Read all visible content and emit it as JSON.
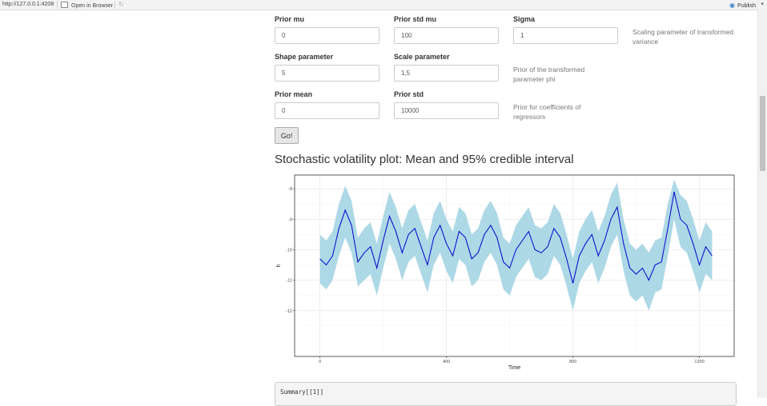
{
  "browser": {
    "url": "http://127.0.0.1:4208",
    "open_in_browser": "Open in Browser",
    "publish": "Publish",
    "caret": "▾"
  },
  "form": {
    "prior_mu": {
      "label": "Prior mu",
      "value": "0"
    },
    "prior_std_mu": {
      "label": "Prior std mu",
      "value": "100"
    },
    "sigma": {
      "label": "Sigma",
      "value": "1"
    },
    "sigma_help": "Scaling parameter of transformed variance",
    "shape": {
      "label": "Shape parameter",
      "value": "5"
    },
    "scale": {
      "label": "Scale parameter",
      "value": "1,5"
    },
    "phi_help": "Prior of the transformed parameter phi",
    "prior_mean": {
      "label": "Prior mean",
      "value": "0"
    },
    "prior_std": {
      "label": "Prior std",
      "value": "10000"
    },
    "coef_help": "Prior for coefficients of regressors",
    "go_label": "Go!"
  },
  "plot_title": "Stochastic volatility plot: Mean and 95% credible interval",
  "code_text": "Summary[[1]]",
  "colors": {
    "band": "#add8e6",
    "line": "#0000cd",
    "grid": "#ebebeb",
    "panel_border": "#333333"
  },
  "chart_data": {
    "type": "area",
    "xlabel": "Time",
    "ylabel": "h",
    "xlim": [
      -80,
      1310
    ],
    "ylim": [
      -13.5,
      -7.55
    ],
    "x_ticks": [
      0,
      400,
      800,
      1200
    ],
    "y_ticks": [
      -8,
      -9,
      -10,
      -11,
      -12
    ],
    "grid": true,
    "series": [
      {
        "x": [
          0,
          20,
          40,
          60,
          80,
          100,
          120,
          140,
          160,
          180,
          200,
          220,
          240,
          260,
          280,
          300,
          320,
          340,
          360,
          380,
          400,
          420,
          440,
          460,
          480,
          500,
          520,
          540,
          560,
          580,
          600,
          620,
          640,
          660,
          680,
          700,
          720,
          740,
          760,
          780,
          800,
          820,
          840,
          860,
          880,
          900,
          920,
          940,
          960,
          980,
          1000,
          1020,
          1040,
          1060,
          1080,
          1100,
          1120,
          1140,
          1160,
          1180,
          1200,
          1220,
          1240
        ],
        "values": [
          -10.3,
          -10.5,
          -10.2,
          -9.3,
          -8.7,
          -9.2,
          -10.4,
          -10.1,
          -9.9,
          -10.6,
          -9.7,
          -8.9,
          -9.4,
          -10.1,
          -9.5,
          -9.3,
          -9.9,
          -10.5,
          -9.6,
          -9.2,
          -9.8,
          -10.2,
          -9.4,
          -9.6,
          -10.3,
          -10.1,
          -9.5,
          -9.2,
          -9.6,
          -10.4,
          -10.6,
          -10.0,
          -9.7,
          -9.4,
          -10.0,
          -10.1,
          -9.9,
          -9.3,
          -9.6,
          -10.3,
          -11.1,
          -10.2,
          -9.8,
          -9.5,
          -10.2,
          -9.7,
          -9.0,
          -8.6,
          -9.8,
          -10.6,
          -10.8,
          -10.6,
          -11.0,
          -10.5,
          -10.4,
          -9.3,
          -8.1,
          -9.0,
          -9.2,
          -9.8,
          -10.5,
          -9.9,
          -10.2
        ],
        "lower": [
          -11.1,
          -11.3,
          -11.0,
          -10.2,
          -9.6,
          -10.1,
          -11.2,
          -11.0,
          -10.8,
          -11.5,
          -10.6,
          -9.8,
          -10.3,
          -11.0,
          -10.4,
          -10.2,
          -10.8,
          -11.4,
          -10.5,
          -10.1,
          -10.7,
          -11.1,
          -10.3,
          -10.5,
          -11.2,
          -11.0,
          -10.4,
          -10.1,
          -10.5,
          -11.3,
          -11.5,
          -10.9,
          -10.6,
          -10.3,
          -10.9,
          -11.0,
          -10.8,
          -10.2,
          -10.5,
          -11.2,
          -12.0,
          -11.1,
          -10.7,
          -10.4,
          -11.1,
          -10.6,
          -9.9,
          -9.5,
          -10.7,
          -11.5,
          -11.7,
          -11.5,
          -12.0,
          -11.4,
          -11.3,
          -10.2,
          -9.0,
          -9.9,
          -10.1,
          -10.7,
          -11.4,
          -10.8,
          -11.0
        ],
        "upper": [
          -9.5,
          -9.7,
          -9.4,
          -8.5,
          -7.9,
          -8.4,
          -9.6,
          -9.3,
          -9.1,
          -9.8,
          -8.9,
          -8.1,
          -8.6,
          -9.3,
          -8.7,
          -8.5,
          -9.1,
          -9.7,
          -8.8,
          -8.4,
          -9.0,
          -9.4,
          -8.6,
          -8.8,
          -9.5,
          -9.3,
          -8.7,
          -8.4,
          -8.8,
          -9.6,
          -9.8,
          -9.2,
          -8.9,
          -8.6,
          -9.2,
          -9.3,
          -9.1,
          -8.5,
          -8.8,
          -9.5,
          -10.3,
          -9.4,
          -9.0,
          -8.7,
          -9.4,
          -8.9,
          -8.2,
          -7.8,
          -9.0,
          -9.8,
          -10.0,
          -9.8,
          -10.1,
          -9.7,
          -9.6,
          -8.5,
          -7.7,
          -8.2,
          -8.4,
          -9.0,
          -9.7,
          -9.1,
          -9.4
        ]
      }
    ]
  }
}
